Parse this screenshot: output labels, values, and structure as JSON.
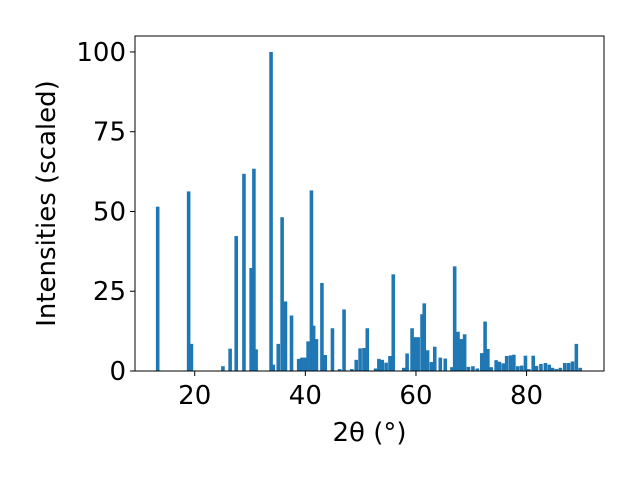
{
  "chart_data": {
    "type": "bar",
    "xlabel": "2θ (°)",
    "ylabel": "Intensities (scaled)",
    "xlim": [
      9.2,
      94.0
    ],
    "ylim": [
      0,
      105
    ],
    "xticks": [
      20,
      40,
      60,
      80
    ],
    "yticks": [
      0,
      25,
      50,
      75,
      100
    ],
    "bar_width": 0.65,
    "color": "#1f77b4",
    "x": [
      13.3,
      18.9,
      19.4,
      25.1,
      26.4,
      27.5,
      28.9,
      30.2,
      30.7,
      31.1,
      33.8,
      34.2,
      35.1,
      35.8,
      36.4,
      37.5,
      38.8,
      39.4,
      40.0,
      40.5,
      41.1,
      41.5,
      42.0,
      43.0,
      43.6,
      44.9,
      46.2,
      47.0,
      48.4,
      49.2,
      49.9,
      50.6,
      51.2,
      52.7,
      53.3,
      53.9,
      54.6,
      55.3,
      55.9,
      57.8,
      58.4,
      59.3,
      59.8,
      60.4,
      61.1,
      61.5,
      62.1,
      62.8,
      63.4,
      64.4,
      65.3,
      66.5,
      67.0,
      67.6,
      68.2,
      68.8,
      69.5,
      70.3,
      71.1,
      71.9,
      72.5,
      73.0,
      73.6,
      74.5,
      75.1,
      75.8,
      76.4,
      77.1,
      77.7,
      78.4,
      79.1,
      79.8,
      80.4,
      81.2,
      81.8,
      82.6,
      83.4,
      84.1,
      84.7,
      85.4,
      86.1,
      86.9,
      87.6,
      88.3,
      89.0,
      89.7
    ],
    "values": [
      51.5,
      56.3,
      8.5,
      1.5,
      7.0,
      42.3,
      61.8,
      32.3,
      63.4,
      6.8,
      100.0,
      2.0,
      8.5,
      48.2,
      21.8,
      17.4,
      3.8,
      4.2,
      4.2,
      9.3,
      56.6,
      14.2,
      10.0,
      27.6,
      5.0,
      13.4,
      0.6,
      19.3,
      0.6,
      3.5,
      7.1,
      7.2,
      13.4,
      0.8,
      3.8,
      3.5,
      2.6,
      4.7,
      30.3,
      1.0,
      5.5,
      13.4,
      10.6,
      10.6,
      17.8,
      21.2,
      6.5,
      2.8,
      7.6,
      4.2,
      3.9,
      1.2,
      32.8,
      12.3,
      10.0,
      11.5,
      1.3,
      1.5,
      0.8,
      5.6,
      15.5,
      6.9,
      1.2,
      3.4,
      2.9,
      2.4,
      4.7,
      4.9,
      5.1,
      1.5,
      1.7,
      4.8,
      0.6,
      4.8,
      1.6,
      2.2,
      2.5,
      2.0,
      1.0,
      0.6,
      1.0,
      2.5,
      2.5,
      3.0,
      8.5,
      1.0
    ]
  }
}
